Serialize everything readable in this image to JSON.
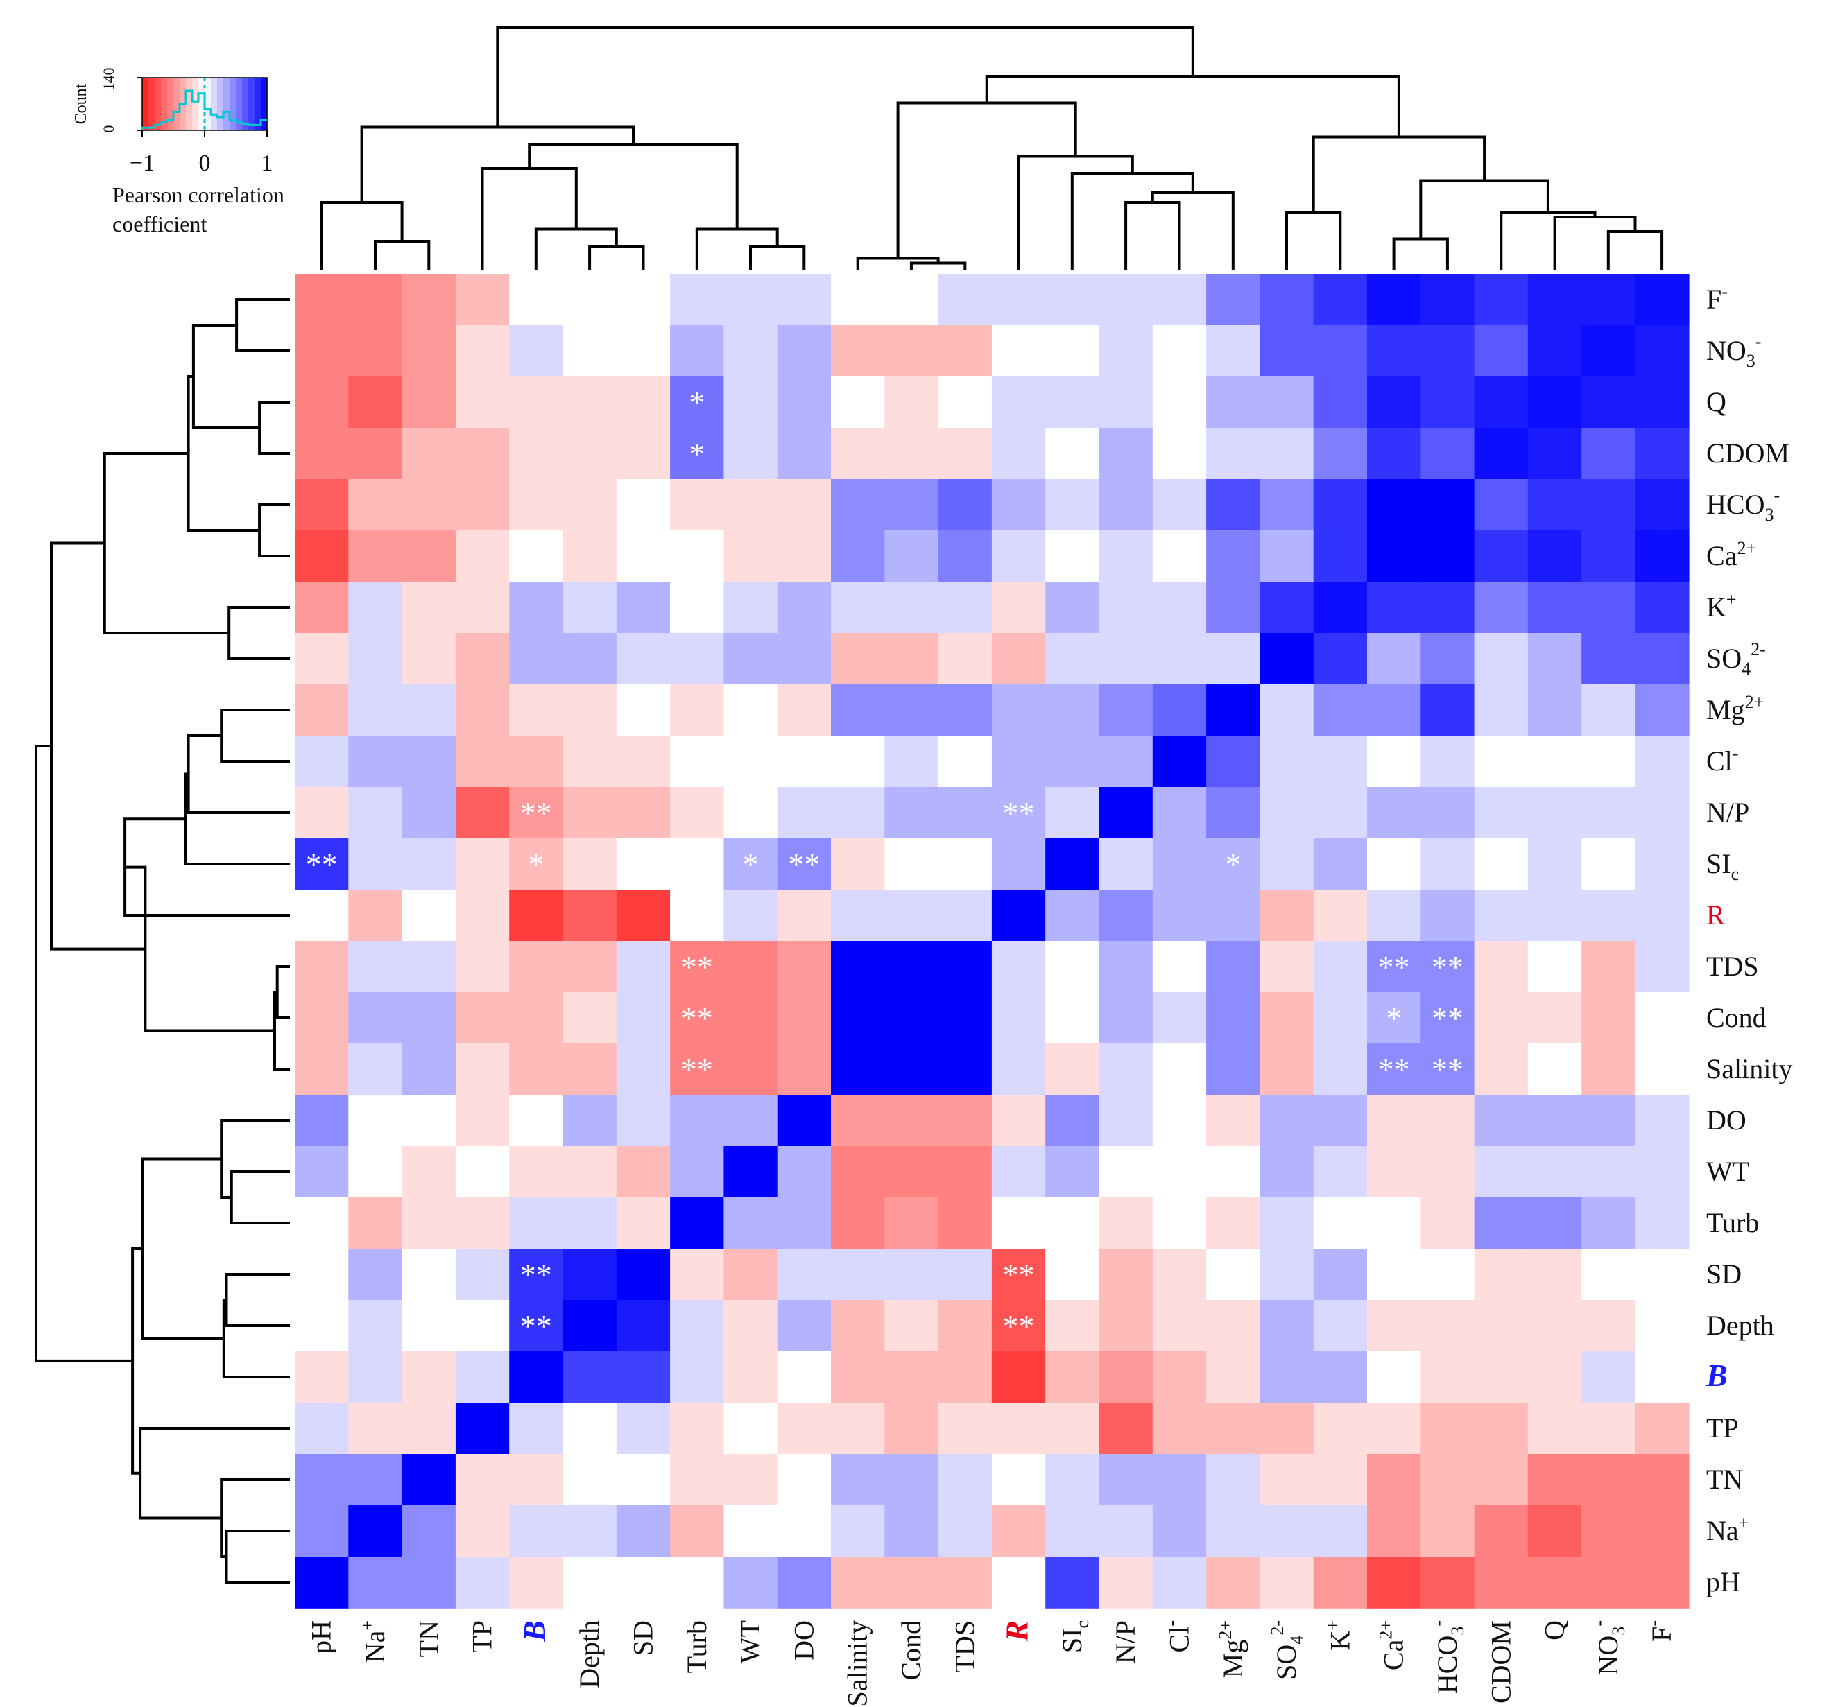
{
  "chart_data": {
    "type": "heatmap",
    "title": "",
    "xlabel": "",
    "ylabel": "",
    "x_labels": [
      "pH",
      "Na+",
      "TN",
      "TP",
      "B",
      "Depth",
      "SD",
      "Turb",
      "WT",
      "DO",
      "Salinity",
      "Cond",
      "TDS",
      "R",
      "SIc",
      "N/P",
      "Cl-",
      "Mg2+",
      "SO42-",
      "K+",
      "Ca2+",
      "HCO3-",
      "CDOM",
      "Q",
      "NO3-",
      "F-"
    ],
    "y_labels": [
      "F-",
      "NO3-",
      "Q",
      "CDOM",
      "HCO3-",
      "Ca2+",
      "K+",
      "SO42-",
      "Mg2+",
      "Cl-",
      "N/P",
      "SIc",
      "R",
      "TDS",
      "Cond",
      "Salinity",
      "DO",
      "WT",
      "Turb",
      "SD",
      "Depth",
      "B",
      "TP",
      "TN",
      "Na+",
      "pH"
    ],
    "highlight_labels": {
      "B": "#1a1aff",
      "R": "#e8001a"
    },
    "value_range": [
      -1,
      1
    ],
    "values": [
      [
        -0.55,
        -0.55,
        -0.45,
        -0.3,
        0,
        0,
        0,
        0.15,
        0.15,
        0.15,
        0,
        0,
        0.15,
        0.15,
        0.15,
        0.15,
        0.15,
        0.5,
        0.65,
        0.8,
        0.95,
        0.9,
        0.8,
        0.9,
        0.9,
        0.95
      ],
      [
        -0.55,
        -0.55,
        -0.45,
        -0.15,
        0.15,
        0,
        0,
        0.3,
        0.15,
        0.3,
        -0.3,
        -0.3,
        -0.3,
        0,
        0,
        0.15,
        0,
        0.15,
        0.65,
        0.65,
        0.8,
        0.8,
        0.65,
        0.9,
        0.95,
        0.9
      ],
      [
        -0.55,
        -0.7,
        -0.45,
        -0.15,
        -0.15,
        -0.15,
        -0.15,
        0.55,
        0.15,
        0.3,
        0,
        -0.15,
        0,
        0.15,
        0.15,
        0.15,
        0,
        0.3,
        0.3,
        0.65,
        0.9,
        0.8,
        0.9,
        0.95,
        0.9,
        0.9
      ],
      [
        -0.55,
        -0.55,
        -0.3,
        -0.3,
        -0.15,
        -0.15,
        -0.15,
        0.55,
        0.15,
        0.3,
        -0.15,
        -0.15,
        -0.15,
        0.15,
        0,
        0.3,
        0,
        0.15,
        0.15,
        0.5,
        0.8,
        0.65,
        0.95,
        0.9,
        0.65,
        0.8
      ],
      [
        -0.7,
        -0.3,
        -0.3,
        -0.3,
        -0.15,
        -0.15,
        0,
        -0.15,
        -0.15,
        -0.15,
        0.45,
        0.45,
        0.6,
        0.3,
        0.15,
        0.3,
        0.15,
        0.7,
        0.45,
        0.8,
        1.0,
        1.0,
        0.65,
        0.8,
        0.8,
        0.9
      ],
      [
        -0.8,
        -0.45,
        -0.45,
        -0.15,
        0,
        -0.15,
        0,
        0,
        -0.15,
        -0.15,
        0.45,
        0.3,
        0.5,
        0.15,
        0,
        0.15,
        0,
        0.5,
        0.3,
        0.8,
        1.0,
        1.0,
        0.8,
        0.9,
        0.8,
        0.95
      ],
      [
        -0.45,
        0.15,
        -0.15,
        -0.15,
        0.3,
        0.15,
        0.3,
        0,
        0.15,
        0.3,
        0.15,
        0.15,
        0.15,
        -0.15,
        0.3,
        0.15,
        0.15,
        0.5,
        0.8,
        0.95,
        0.8,
        0.8,
        0.5,
        0.65,
        0.65,
        0.8
      ],
      [
        -0.15,
        0.15,
        -0.15,
        -0.3,
        0.3,
        0.3,
        0.15,
        0.15,
        0.3,
        0.3,
        -0.3,
        -0.3,
        -0.15,
        -0.3,
        0.15,
        0.15,
        0.15,
        0.15,
        1.0,
        0.8,
        0.3,
        0.5,
        0.15,
        0.3,
        0.65,
        0.65
      ],
      [
        -0.3,
        0.15,
        0.15,
        -0.3,
        -0.15,
        -0.15,
        0,
        -0.15,
        0,
        -0.15,
        0.45,
        0.45,
        0.45,
        0.3,
        0.3,
        0.45,
        0.6,
        1.0,
        0.15,
        0.45,
        0.45,
        0.8,
        0.15,
        0.3,
        0.15,
        0.45
      ],
      [
        0.15,
        0.3,
        0.3,
        -0.3,
        -0.3,
        -0.15,
        -0.15,
        0,
        0,
        0,
        0,
        0.15,
        0,
        0.3,
        0.3,
        0.3,
        1.0,
        0.65,
        0.15,
        0.15,
        0,
        0.15,
        0,
        0,
        0,
        0.15
      ],
      [
        -0.15,
        0.15,
        0.3,
        -0.7,
        -0.45,
        -0.3,
        -0.3,
        -0.15,
        0,
        0.15,
        0.15,
        0.3,
        0.3,
        0.3,
        0.15,
        1.0,
        0.3,
        0.5,
        0.15,
        0.15,
        0.3,
        0.3,
        0.15,
        0.15,
        0.15,
        0.15
      ],
      [
        0.8,
        0.15,
        0.15,
        -0.15,
        -0.3,
        -0.15,
        0,
        0,
        0.3,
        0.45,
        -0.15,
        0,
        0,
        0.3,
        1.0,
        0.15,
        0.3,
        0.3,
        0.15,
        0.3,
        0,
        0.15,
        0,
        0.15,
        0,
        0.15
      ],
      [
        0,
        -0.3,
        0,
        -0.15,
        -0.85,
        -0.7,
        -0.85,
        0,
        0.15,
        -0.15,
        0.15,
        0.15,
        0.15,
        1.0,
        0.3,
        0.45,
        0.3,
        0.3,
        -0.3,
        -0.15,
        0.15,
        0.3,
        0.15,
        0.15,
        0.15,
        0.15
      ],
      [
        -0.3,
        0.15,
        0.15,
        -0.15,
        -0.3,
        -0.3,
        0.15,
        -0.55,
        -0.55,
        -0.45,
        1.0,
        1.0,
        1.0,
        0.15,
        0,
        0.3,
        0,
        0.45,
        -0.15,
        0.15,
        0.45,
        0.45,
        -0.15,
        0,
        -0.3,
        0.15
      ],
      [
        -0.3,
        0.3,
        0.3,
        -0.3,
        -0.3,
        -0.15,
        0.15,
        -0.55,
        -0.55,
        -0.45,
        1.0,
        1.0,
        1.0,
        0.15,
        0,
        0.3,
        0.15,
        0.45,
        -0.3,
        0.15,
        0.3,
        0.45,
        -0.15,
        -0.15,
        -0.3,
        0
      ],
      [
        -0.3,
        0.15,
        0.3,
        -0.15,
        -0.3,
        -0.3,
        0.15,
        -0.55,
        -0.55,
        -0.45,
        1.0,
        1.0,
        1.0,
        0.15,
        -0.15,
        0.15,
        0,
        0.45,
        -0.3,
        0.15,
        0.45,
        0.45,
        -0.15,
        0,
        -0.3,
        0
      ],
      [
        0.45,
        0,
        0,
        -0.15,
        0,
        0.3,
        0.15,
        0.3,
        0.3,
        1.0,
        -0.45,
        -0.45,
        -0.45,
        -0.15,
        0.45,
        0.15,
        0,
        -0.15,
        0.3,
        0.3,
        -0.15,
        -0.15,
        0.3,
        0.3,
        0.3,
        0.15
      ],
      [
        0.3,
        0,
        -0.15,
        0,
        -0.15,
        -0.15,
        -0.3,
        0.3,
        1.0,
        0.3,
        -0.55,
        -0.55,
        -0.55,
        0.15,
        0.3,
        0,
        0,
        0,
        0.3,
        0.15,
        -0.15,
        -0.15,
        0.15,
        0.15,
        0.15,
        0.15
      ],
      [
        0,
        -0.3,
        -0.15,
        -0.15,
        0.15,
        0.15,
        -0.15,
        1.0,
        0.3,
        0.3,
        -0.55,
        -0.45,
        -0.55,
        0,
        0,
        -0.15,
        0,
        -0.15,
        0.15,
        0,
        0,
        -0.15,
        0.45,
        0.45,
        0.3,
        0.15
      ],
      [
        0,
        0.3,
        0,
        0.15,
        0.8,
        0.9,
        1.0,
        -0.15,
        -0.3,
        0.15,
        0.15,
        0.15,
        0.15,
        -0.75,
        0,
        -0.3,
        -0.15,
        0,
        0.15,
        0.3,
        0,
        0,
        -0.15,
        -0.15,
        0,
        0
      ],
      [
        0,
        0.15,
        0,
        0,
        0.8,
        1.0,
        0.9,
        0.15,
        -0.15,
        0.3,
        -0.3,
        -0.15,
        -0.3,
        -0.75,
        -0.15,
        -0.3,
        -0.15,
        -0.15,
        0.3,
        0.15,
        -0.15,
        -0.15,
        -0.15,
        -0.15,
        -0.15,
        0
      ],
      [
        -0.15,
        0.15,
        -0.15,
        0.15,
        1.0,
        0.75,
        0.75,
        0.15,
        -0.15,
        0,
        -0.3,
        -0.3,
        -0.3,
        -0.85,
        -0.3,
        -0.45,
        -0.3,
        -0.15,
        0.3,
        0.3,
        0,
        -0.15,
        -0.15,
        -0.15,
        0.15,
        0
      ],
      [
        0.15,
        -0.15,
        -0.15,
        1.0,
        0.15,
        0,
        0.15,
        -0.15,
        0,
        -0.15,
        -0.15,
        -0.3,
        -0.15,
        -0.15,
        -0.15,
        -0.7,
        -0.3,
        -0.3,
        -0.3,
        -0.15,
        -0.15,
        -0.3,
        -0.3,
        -0.15,
        -0.15,
        -0.3
      ],
      [
        0.45,
        0.45,
        1.0,
        -0.15,
        -0.15,
        0,
        0,
        -0.15,
        -0.15,
        0,
        0.3,
        0.3,
        0.15,
        0,
        0.15,
        0.3,
        0.3,
        0.15,
        -0.15,
        -0.15,
        -0.45,
        -0.3,
        -0.3,
        -0.55,
        -0.55,
        -0.55
      ],
      [
        0.45,
        1.0,
        0.45,
        -0.15,
        0.15,
        0.15,
        0.3,
        -0.3,
        0,
        0,
        0.15,
        0.3,
        0.15,
        -0.3,
        0.15,
        0.15,
        0.3,
        0.15,
        0.15,
        0.15,
        -0.45,
        -0.3,
        -0.55,
        -0.7,
        -0.55,
        -0.55
      ],
      [
        1.0,
        0.45,
        0.45,
        0.15,
        -0.15,
        0,
        0,
        0,
        0.3,
        0.45,
        -0.3,
        -0.3,
        -0.3,
        0,
        0.75,
        -0.15,
        0.15,
        -0.3,
        -0.15,
        -0.45,
        -0.8,
        -0.7,
        -0.55,
        -0.55,
        -0.55,
        -0.55
      ]
    ],
    "significance": [
      {
        "row": 2,
        "col": 7,
        "mark": "*"
      },
      {
        "row": 3,
        "col": 7,
        "mark": "*"
      },
      {
        "row": 10,
        "col": 4,
        "mark": "**"
      },
      {
        "row": 10,
        "col": 13,
        "mark": "**"
      },
      {
        "row": 11,
        "col": 0,
        "mark": "**"
      },
      {
        "row": 11,
        "col": 4,
        "mark": "*"
      },
      {
        "row": 11,
        "col": 8,
        "mark": "*"
      },
      {
        "row": 11,
        "col": 9,
        "mark": "**"
      },
      {
        "row": 11,
        "col": 17,
        "mark": "*"
      },
      {
        "row": 13,
        "col": 7,
        "mark": "**"
      },
      {
        "row": 13,
        "col": 20,
        "mark": "**"
      },
      {
        "row": 13,
        "col": 21,
        "mark": "**"
      },
      {
        "row": 14,
        "col": 7,
        "mark": "**"
      },
      {
        "row": 14,
        "col": 20,
        "mark": "*"
      },
      {
        "row": 14,
        "col": 21,
        "mark": "**"
      },
      {
        "row": 15,
        "col": 7,
        "mark": "**"
      },
      {
        "row": 15,
        "col": 20,
        "mark": "**"
      },
      {
        "row": 15,
        "col": 21,
        "mark": "**"
      },
      {
        "row": 19,
        "col": 4,
        "mark": "**"
      },
      {
        "row": 19,
        "col": 13,
        "mark": "**"
      },
      {
        "row": 20,
        "col": 4,
        "mark": "**"
      },
      {
        "row": 20,
        "col": 13,
        "mark": "**"
      }
    ],
    "col_dendrogram": [
      {
        "a": 1,
        "b": 2,
        "h": 0.12
      },
      {
        "a": 0,
        "b": "n1",
        "h": 0.28
      },
      {
        "a": 5,
        "b": 6,
        "h": 0.1
      },
      {
        "a": 4,
        "b": "n3",
        "h": 0.17
      },
      {
        "a": 3,
        "b": "n4",
        "h": 0.42
      },
      {
        "a": 8,
        "b": 9,
        "h": 0.1
      },
      {
        "a": 7,
        "b": "n6",
        "h": 0.17
      },
      {
        "a": "n5",
        "b": "n7",
        "h": 0.52
      },
      {
        "a": "n2",
        "b": "n8",
        "h": 0.59
      },
      {
        "a": 11,
        "b": 12,
        "h": 0.03
      },
      {
        "a": 10,
        "b": "n10",
        "h": 0.05
      },
      {
        "a": 15,
        "b": 16,
        "h": 0.28
      },
      {
        "a": "n12",
        "b": 17,
        "h": 0.32
      },
      {
        "a": 14,
        "b": "n13",
        "h": 0.4
      },
      {
        "a": 13,
        "b": "n14",
        "h": 0.47
      },
      {
        "a": "n11",
        "b": "n15",
        "h": 0.69
      },
      {
        "a": 18,
        "b": 19,
        "h": 0.24
      },
      {
        "a": 20,
        "b": 21,
        "h": 0.13
      },
      {
        "a": 24,
        "b": 25,
        "h": 0.16
      },
      {
        "a": 23,
        "b": "n19",
        "h": 0.22
      },
      {
        "a": 22,
        "b": "n20",
        "h": 0.24
      },
      {
        "a": "n18",
        "b": "n21",
        "h": 0.37
      },
      {
        "a": "n17",
        "b": "n22",
        "h": 0.55
      },
      {
        "a": "n16",
        "b": "n23",
        "h": 0.8
      },
      {
        "a": "n9",
        "b": "n24",
        "h": 1.0
      }
    ],
    "row_dendrogram": [
      {
        "a": 0,
        "b": 1,
        "h": 0.21
      },
      {
        "a": 2,
        "b": 3,
        "h": 0.12
      },
      {
        "a": "n1",
        "b": "n2",
        "h": 0.38
      },
      {
        "a": 4,
        "b": 5,
        "h": 0.12
      },
      {
        "a": "n3",
        "b": "n4",
        "h": 0.4
      },
      {
        "a": 6,
        "b": 7,
        "h": 0.24
      },
      {
        "a": "n5",
        "b": "n6",
        "h": 0.73
      },
      {
        "a": 8,
        "b": 9,
        "h": 0.27
      },
      {
        "a": "n8",
        "b": 10,
        "h": 0.4
      },
      {
        "a": "n9",
        "b": 11,
        "h": 0.41
      },
      {
        "a": "n10",
        "b": 12,
        "h": 0.65
      },
      {
        "a": 13,
        "b": 14,
        "h": 0.05
      },
      {
        "a": "n12",
        "b": 15,
        "h": 0.06
      },
      {
        "a": "n11",
        "b": "n13",
        "h": 0.57
      },
      {
        "a": "n7",
        "b": "n14",
        "h": 0.94
      },
      {
        "a": 17,
        "b": 18,
        "h": 0.23
      },
      {
        "a": 16,
        "b": "n16",
        "h": 0.27
      },
      {
        "a": 19,
        "b": 20,
        "h": 0.25
      },
      {
        "a": "n18",
        "b": 21,
        "h": 0.26
      },
      {
        "a": "n17",
        "b": "n19",
        "h": 0.58
      },
      {
        "a": 24,
        "b": 25,
        "h": 0.25
      },
      {
        "a": 23,
        "b": "n21",
        "h": 0.27
      },
      {
        "a": "n22",
        "b": 22,
        "h": 0.59
      },
      {
        "a": "n20",
        "b": "n23",
        "h": 0.62
      },
      {
        "a": "n15",
        "b": "n24",
        "h": 1.0
      }
    ]
  },
  "legend": {
    "count_label": "Count",
    "count_ticks": [
      "0",
      "140"
    ],
    "x_ticks": [
      "−1",
      "0",
      "1"
    ],
    "title_line1": "Pearson correlation",
    "title_line2": "coefficient",
    "histogram_color": "#00c8d2",
    "histogram": [
      0.05,
      0.05,
      0.1,
      0.15,
      0.2,
      0.35,
      0.5,
      0.75,
      0.55,
      0.7,
      0.4,
      0.3,
      0.25,
      0.35,
      0.2,
      0.15,
      0.12,
      0.1,
      0.1,
      0.2
    ]
  },
  "colors": {
    "negative": "#ff1a1a",
    "neutral": "#ffffff",
    "positive": "#0000ff",
    "dendrogram": "#000000",
    "significance_mark": "#ffffff"
  }
}
